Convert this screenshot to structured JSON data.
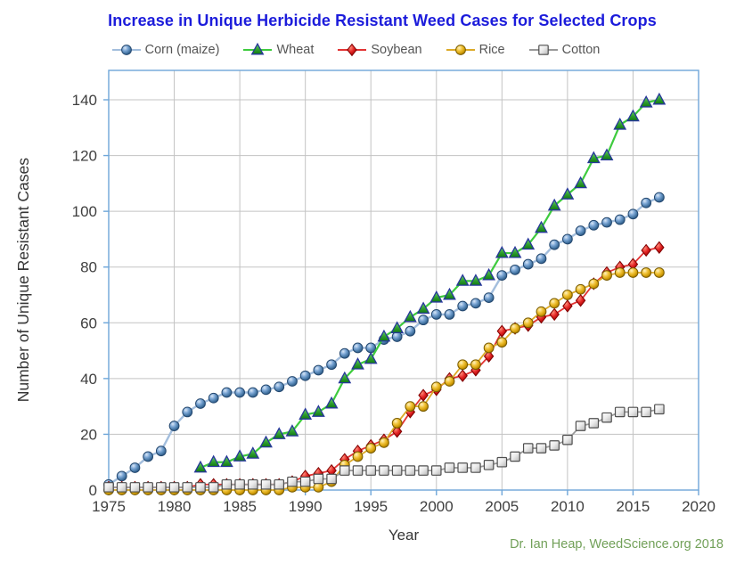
{
  "credit": "Dr. Ian Heap, WeedScience.org 2018",
  "colors": {
    "title": "#1c1cdb",
    "credit": "#71a058",
    "axis": "#6ea6d9",
    "grid": "#c3c3c3",
    "text": "#3f3f3f",
    "legend_text": "#555555"
  },
  "chart_data": {
    "type": "line",
    "title": "Increase in Unique Herbicide Resistant Weed Cases for Selected Crops",
    "xlabel": "Year",
    "ylabel": "Number of Unique Resistant Cases",
    "xlim": [
      1975,
      2020
    ],
    "ylim": [
      0,
      150
    ],
    "grid": true,
    "legend_position": "top",
    "x_ticks": [
      1975,
      1980,
      1985,
      1990,
      1995,
      2000,
      2005,
      2010,
      2015,
      2020
    ],
    "y_ticks": [
      0,
      20,
      40,
      60,
      80,
      100,
      120,
      140
    ],
    "years": [
      1975,
      1976,
      1977,
      1978,
      1979,
      1980,
      1981,
      1982,
      1983,
      1984,
      1985,
      1986,
      1987,
      1988,
      1989,
      1990,
      1991,
      1992,
      1993,
      1994,
      1995,
      1996,
      1997,
      1998,
      1999,
      2000,
      2001,
      2002,
      2003,
      2004,
      2005,
      2006,
      2007,
      2008,
      2009,
      2010,
      2011,
      2012,
      2013,
      2014,
      2015,
      2016,
      2017
    ],
    "series": [
      {
        "key": "corn",
        "name": "Corn (maize)",
        "marker": "circle",
        "color": "#4f81bd",
        "line_color": "#a3bedd",
        "values": [
          2,
          5,
          8,
          12,
          14,
          23,
          28,
          31,
          33,
          35,
          35,
          35,
          36,
          37,
          39,
          41,
          43,
          45,
          49,
          51,
          51,
          54,
          55,
          57,
          61,
          63,
          63,
          66,
          67,
          69,
          77,
          79,
          81,
          83,
          88,
          90,
          93,
          95,
          96,
          97,
          99,
          103,
          105
        ]
      },
      {
        "key": "wheat",
        "name": "Wheat",
        "marker": "triangle",
        "color": "#2f9e2f",
        "line_color": "#3ecb3e",
        "values": [
          null,
          null,
          null,
          null,
          null,
          null,
          null,
          8,
          10,
          10,
          12,
          13,
          17,
          20,
          21,
          27,
          28,
          31,
          40,
          45,
          47,
          55,
          58,
          62,
          65,
          69,
          70,
          75,
          75,
          77,
          85,
          85,
          88,
          94,
          102,
          106,
          110,
          119,
          120,
          131,
          134,
          139,
          140
        ]
      },
      {
        "key": "soybean",
        "name": "Soybean",
        "marker": "diamond",
        "color": "#c00000",
        "line_color": "#e23333",
        "values": [
          1,
          1,
          1,
          1,
          1,
          1,
          1,
          2,
          2,
          2,
          2,
          2,
          2,
          2,
          3,
          5,
          6,
          7,
          11,
          14,
          16,
          18,
          21,
          28,
          34,
          36,
          40,
          41,
          43,
          48,
          57,
          58,
          59,
          62,
          63,
          66,
          68,
          74,
          78,
          80,
          81,
          86,
          87
        ]
      },
      {
        "key": "rice",
        "name": "Rice",
        "marker": "circle",
        "color": "#d9a400",
        "line_color": "#dcaa28",
        "values": [
          0,
          0,
          0,
          0,
          0,
          0,
          0,
          0,
          0,
          0,
          0,
          0,
          0,
          0,
          1,
          1,
          1,
          3,
          9,
          12,
          15,
          17,
          24,
          30,
          30,
          37,
          39,
          45,
          45,
          51,
          53,
          58,
          60,
          64,
          67,
          70,
          72,
          74,
          77,
          78,
          78,
          78,
          78
        ]
      },
      {
        "key": "cotton",
        "name": "Cotton",
        "marker": "square",
        "color": "#d9d9d9",
        "line_color": "#999999",
        "values": [
          1,
          1,
          1,
          1,
          1,
          1,
          1,
          1,
          1,
          2,
          2,
          2,
          2,
          2,
          3,
          3,
          4,
          4,
          7,
          7,
          7,
          7,
          7,
          7,
          7,
          7,
          8,
          8,
          8,
          9,
          10,
          12,
          15,
          15,
          16,
          18,
          23,
          24,
          26,
          28,
          28,
          28,
          29
        ]
      }
    ]
  }
}
